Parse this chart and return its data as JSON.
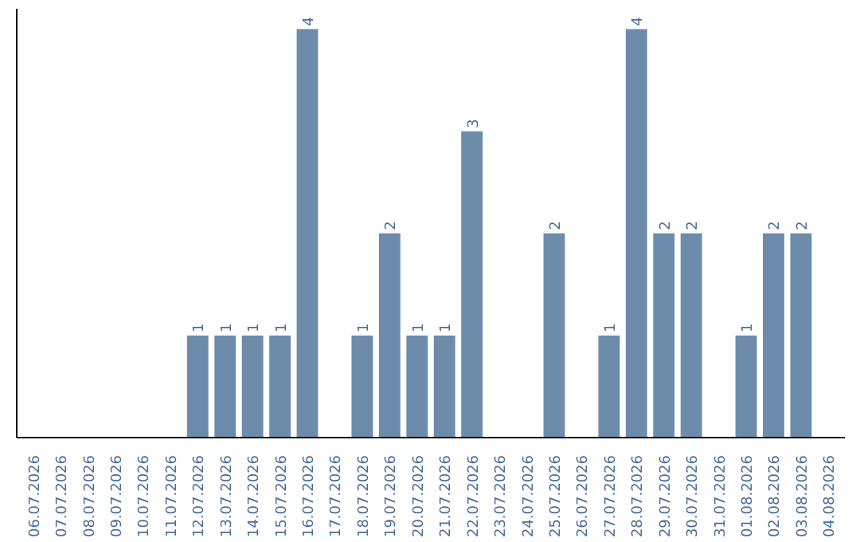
{
  "chart_data": {
    "type": "bar",
    "categories": [
      "06.07.2026",
      "07.07.2026",
      "08.07.2026",
      "09.07.2026",
      "10.07.2026",
      "11.07.2026",
      "12.07.2026",
      "13.07.2026",
      "14.07.2026",
      "15.07.2026",
      "16.07.2026",
      "17.07.2026",
      "18.07.2026",
      "19.07.2026",
      "20.07.2026",
      "21.07.2026",
      "22.07.2026",
      "23.07.2026",
      "24.07.2026",
      "25.07.2026",
      "26.07.2026",
      "27.07.2026",
      "28.07.2026",
      "29.07.2026",
      "30.07.2026",
      "31.07.2026",
      "01.08.2026",
      "02.08.2026",
      "03.08.2026",
      "04.08.2026"
    ],
    "values": [
      0,
      0,
      0,
      0,
      0,
      0,
      1,
      1,
      1,
      1,
      4,
      0,
      1,
      2,
      1,
      1,
      3,
      0,
      0,
      2,
      0,
      1,
      4,
      2,
      2,
      0,
      1,
      2,
      2,
      0
    ],
    "value_labels": [
      null,
      null,
      null,
      null,
      null,
      null,
      "1",
      "1",
      "1",
      "1",
      "4",
      null,
      "1",
      "2",
      "1",
      "1",
      "3",
      null,
      null,
      "2",
      null,
      "1",
      "4",
      "2",
      "2",
      null,
      "1",
      "2",
      "2",
      null
    ],
    "color": "#6d8cab",
    "grid": false,
    "tick_labels": "x"
  }
}
